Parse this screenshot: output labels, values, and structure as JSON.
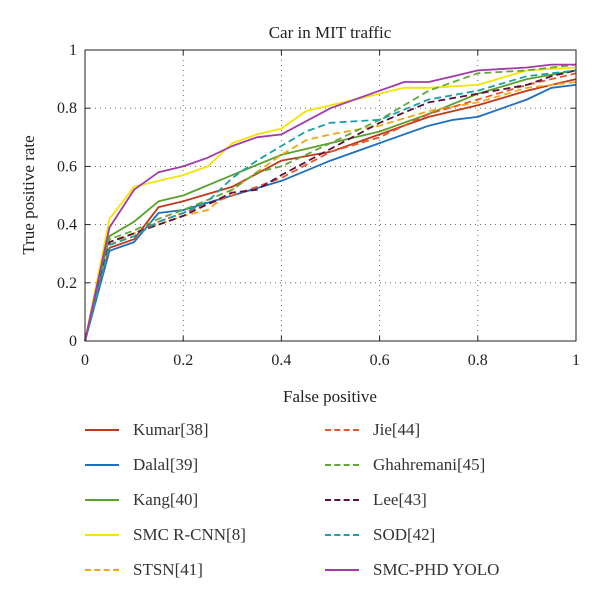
{
  "chart_data": {
    "type": "line",
    "title": "Car in MIT traffic",
    "xlabel": "False positive",
    "ylabel": "True positive rate",
    "xlim": [
      0,
      1
    ],
    "ylim": [
      0,
      1
    ],
    "xticks": [
      "0",
      "0.2",
      "0.4",
      "0.6",
      "0.8",
      "1"
    ],
    "yticks": [
      "0",
      "0.2",
      "0.4",
      "0.6",
      "0.8",
      "1"
    ],
    "grid": true,
    "legend_placement": "below",
    "series": [
      {
        "name": "Kumar[38]",
        "color": "#c0391b",
        "dash": "solid",
        "x": [
          0,
          0.05,
          0.1,
          0.15,
          0.2,
          0.3,
          0.4,
          0.5,
          0.6,
          0.7,
          0.8,
          0.9,
          1.0
        ],
        "y": [
          0,
          0.32,
          0.35,
          0.46,
          0.48,
          0.53,
          0.62,
          0.65,
          0.71,
          0.77,
          0.81,
          0.86,
          0.9
        ]
      },
      {
        "name": "Dalal[39]",
        "color": "#1f6fbf",
        "dash": "solid",
        "x": [
          0,
          0.05,
          0.1,
          0.15,
          0.2,
          0.3,
          0.4,
          0.5,
          0.6,
          0.7,
          0.75,
          0.8,
          0.9,
          0.95,
          1.0
        ],
        "y": [
          0,
          0.31,
          0.34,
          0.44,
          0.45,
          0.5,
          0.55,
          0.62,
          0.68,
          0.74,
          0.76,
          0.77,
          0.83,
          0.87,
          0.88
        ]
      },
      {
        "name": "Kang[40]",
        "color": "#5aa02c",
        "dash": "solid",
        "x": [
          0,
          0.05,
          0.1,
          0.15,
          0.2,
          0.3,
          0.4,
          0.5,
          0.6,
          0.7,
          0.8,
          0.9,
          1.0
        ],
        "y": [
          0,
          0.36,
          0.41,
          0.48,
          0.5,
          0.57,
          0.64,
          0.68,
          0.72,
          0.78,
          0.85,
          0.9,
          0.93
        ]
      },
      {
        "name": "SMC R-CNN[8]",
        "color": "#f5e400",
        "dash": "solid",
        "x": [
          0,
          0.05,
          0.1,
          0.15,
          0.2,
          0.25,
          0.3,
          0.35,
          0.4,
          0.45,
          0.5,
          0.6,
          0.65,
          0.7,
          0.8,
          0.9,
          1.0
        ],
        "y": [
          0,
          0.42,
          0.53,
          0.55,
          0.57,
          0.6,
          0.68,
          0.71,
          0.73,
          0.79,
          0.81,
          0.85,
          0.87,
          0.87,
          0.88,
          0.93,
          0.94
        ]
      },
      {
        "name": "STSN[41]",
        "color": "#f0a818",
        "dash": "dashed",
        "x": [
          0,
          0.05,
          0.1,
          0.15,
          0.2,
          0.25,
          0.3,
          0.35,
          0.4,
          0.45,
          0.5,
          0.6,
          0.7,
          0.8,
          0.9,
          1.0
        ],
        "y": [
          0,
          0.33,
          0.37,
          0.4,
          0.43,
          0.45,
          0.52,
          0.58,
          0.64,
          0.69,
          0.71,
          0.74,
          0.79,
          0.82,
          0.87,
          0.89
        ]
      },
      {
        "name": "Jie[44]",
        "color": "#e8562a",
        "dash": "dashed",
        "x": [
          0,
          0.05,
          0.1,
          0.15,
          0.2,
          0.3,
          0.35,
          0.4,
          0.5,
          0.6,
          0.7,
          0.8,
          0.9,
          1.0
        ],
        "y": [
          0,
          0.34,
          0.37,
          0.41,
          0.44,
          0.5,
          0.53,
          0.56,
          0.65,
          0.7,
          0.78,
          0.83,
          0.88,
          0.92
        ]
      },
      {
        "name": "Ghahremani[45]",
        "color": "#62a83a",
        "dash": "dashed",
        "x": [
          0,
          0.05,
          0.1,
          0.15,
          0.2,
          0.3,
          0.35,
          0.4,
          0.5,
          0.6,
          0.7,
          0.8,
          0.9,
          1.0
        ],
        "y": [
          0,
          0.35,
          0.38,
          0.42,
          0.45,
          0.52,
          0.58,
          0.6,
          0.68,
          0.76,
          0.86,
          0.92,
          0.93,
          0.95
        ]
      },
      {
        "name": "Lee[43]",
        "color": "#5a1040",
        "dash": "dashed",
        "x": [
          0,
          0.05,
          0.1,
          0.15,
          0.2,
          0.3,
          0.35,
          0.4,
          0.5,
          0.6,
          0.7,
          0.8,
          0.9,
          0.95,
          1.0
        ],
        "y": [
          0,
          0.34,
          0.37,
          0.4,
          0.43,
          0.51,
          0.52,
          0.57,
          0.66,
          0.75,
          0.82,
          0.85,
          0.88,
          0.91,
          0.93
        ]
      },
      {
        "name": "SOD[42]",
        "color": "#1aa0a6",
        "dash": "dashed",
        "x": [
          0,
          0.05,
          0.1,
          0.15,
          0.2,
          0.25,
          0.3,
          0.35,
          0.4,
          0.45,
          0.5,
          0.6,
          0.7,
          0.8,
          0.9,
          1.0
        ],
        "y": [
          0,
          0.33,
          0.36,
          0.41,
          0.44,
          0.48,
          0.56,
          0.62,
          0.67,
          0.72,
          0.75,
          0.76,
          0.83,
          0.86,
          0.91,
          0.93
        ]
      },
      {
        "name": "SMC-PHD YOLO",
        "color": "#a23aa8",
        "dash": "solid",
        "x": [
          0,
          0.05,
          0.1,
          0.15,
          0.2,
          0.25,
          0.3,
          0.35,
          0.4,
          0.5,
          0.6,
          0.65,
          0.7,
          0.75,
          0.8,
          0.9,
          0.95,
          1.0
        ],
        "y": [
          0,
          0.39,
          0.52,
          0.58,
          0.6,
          0.63,
          0.67,
          0.7,
          0.71,
          0.8,
          0.86,
          0.89,
          0.89,
          0.91,
          0.93,
          0.94,
          0.95,
          0.95
        ]
      }
    ]
  }
}
